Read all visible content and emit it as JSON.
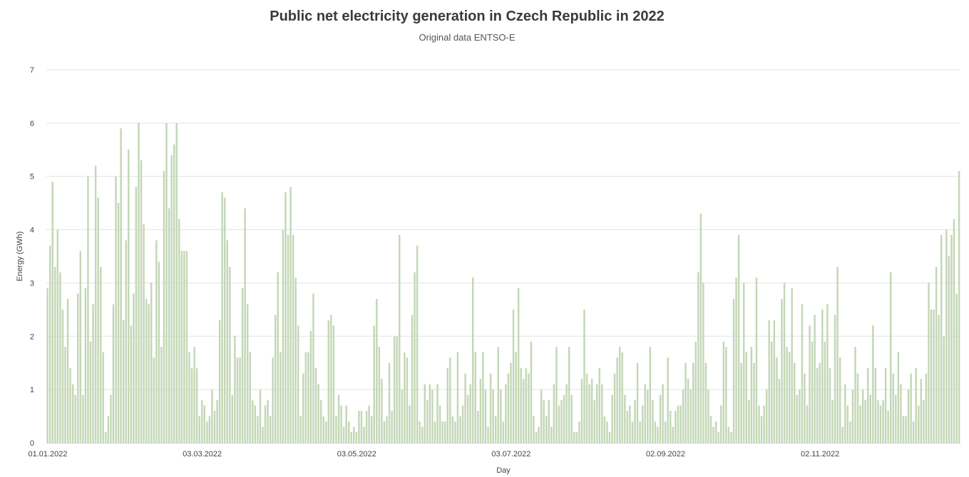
{
  "chart_data": {
    "type": "bar",
    "title": "Public net electricity generation in Czech Republic in 2022",
    "subtitle": "Original data ENTSO-E",
    "xlabel": "Day",
    "ylabel": "Energy (GWh)",
    "ylim": [
      0,
      7
    ],
    "y_ticks": [
      "0",
      "1",
      "2",
      "3",
      "4",
      "5",
      "6",
      "7"
    ],
    "grid": true,
    "color": "#c3d7b6",
    "x_ticks": [
      {
        "index": 0,
        "label": "01.01.2022"
      },
      {
        "index": 61,
        "label": "03.03.2022"
      },
      {
        "index": 122,
        "label": "03.05.2022"
      },
      {
        "index": 183,
        "label": "03.07.2022"
      },
      {
        "index": 244,
        "label": "02.09.2022"
      },
      {
        "index": 305,
        "label": "02.11.2022"
      }
    ],
    "values": [
      2.9,
      3.7,
      4.9,
      3.3,
      4.0,
      3.2,
      2.5,
      1.8,
      2.7,
      1.4,
      1.1,
      0.9,
      2.8,
      3.6,
      0.9,
      2.9,
      5.0,
      1.9,
      2.6,
      5.2,
      4.6,
      3.3,
      1.7,
      0.2,
      0.5,
      0.9,
      2.6,
      5.0,
      4.5,
      5.9,
      2.3,
      3.8,
      5.5,
      2.2,
      2.8,
      4.8,
      6.0,
      5.3,
      4.1,
      2.7,
      2.6,
      3.0,
      1.6,
      3.8,
      3.4,
      1.8,
      5.1,
      6.0,
      4.4,
      5.4,
      5.6,
      6.0,
      4.2,
      3.6,
      3.6,
      3.6,
      1.7,
      1.4,
      1.8,
      1.4,
      0.5,
      0.8,
      0.7,
      0.4,
      0.5,
      1.0,
      0.6,
      0.8,
      2.3,
      4.7,
      4.6,
      3.8,
      3.3,
      0.9,
      2.0,
      1.6,
      1.6,
      2.9,
      4.4,
      2.6,
      1.7,
      0.8,
      0.7,
      0.5,
      1.0,
      0.3,
      0.7,
      0.8,
      0.5,
      1.6,
      2.4,
      3.2,
      1.7,
      4.0,
      4.7,
      3.9,
      4.8,
      3.9,
      3.1,
      2.2,
      0.5,
      1.3,
      1.7,
      1.7,
      2.1,
      2.8,
      1.4,
      1.1,
      0.8,
      0.5,
      0.4,
      2.3,
      2.4,
      2.2,
      0.5,
      0.9,
      0.7,
      0.3,
      0.7,
      0.4,
      0.2,
      0.3,
      0.2,
      0.6,
      0.6,
      0.3,
      0.6,
      0.7,
      0.5,
      2.2,
      2.7,
      1.8,
      1.2,
      0.4,
      0.5,
      1.5,
      0.6,
      2.0,
      2.0,
      3.9,
      1.0,
      1.7,
      1.6,
      0.7,
      2.4,
      3.2,
      3.7,
      0.4,
      0.3,
      1.1,
      0.8,
      1.1,
      1.0,
      0.4,
      1.1,
      0.7,
      0.4,
      0.4,
      1.4,
      1.6,
      0.5,
      0.4,
      1.7,
      0.5,
      0.7,
      1.3,
      0.9,
      1.1,
      3.1,
      1.7,
      0.6,
      1.2,
      1.7,
      1.0,
      0.3,
      1.3,
      1.0,
      0.5,
      1.8,
      1.0,
      0.4,
      1.1,
      1.3,
      1.5,
      2.5,
      1.7,
      2.9,
      1.4,
      1.2,
      1.4,
      1.3,
      1.9,
      0.5,
      0.2,
      0.3,
      1.0,
      0.8,
      0.5,
      0.8,
      0.3,
      1.1,
      1.8,
      0.7,
      0.8,
      0.9,
      1.1,
      1.8,
      0.9,
      0.2,
      0.2,
      0.4,
      1.2,
      2.5,
      1.3,
      1.1,
      1.2,
      0.8,
      1.1,
      1.4,
      1.1,
      0.5,
      0.4,
      0.2,
      0.9,
      1.3,
      1.6,
      1.8,
      1.7,
      0.9,
      0.6,
      0.7,
      0.4,
      0.8,
      1.5,
      0.4,
      0.7,
      1.1,
      1.0,
      1.8,
      0.8,
      0.4,
      0.3,
      0.9,
      1.1,
      0.4,
      1.6,
      0.6,
      0.3,
      0.6,
      0.7,
      0.7,
      1.0,
      1.5,
      1.2,
      1.0,
      1.5,
      1.9,
      3.2,
      4.3,
      3.0,
      1.5,
      1.0,
      0.5,
      0.3,
      0.4,
      0.2,
      0.7,
      1.9,
      1.8,
      0.3,
      0.2,
      2.7,
      3.1,
      3.9,
      1.5,
      3.0,
      1.7,
      0.8,
      1.8,
      1.5,
      3.1,
      0.7,
      0.5,
      0.7,
      1.0,
      2.3,
      1.9,
      2.3,
      1.6,
      1.2,
      2.7,
      3.0,
      1.8,
      1.7,
      2.9,
      1.5,
      0.9,
      1.0,
      2.6,
      1.3,
      0.7,
      2.2,
      1.9,
      2.4,
      1.4,
      1.5,
      2.5,
      1.9,
      2.6,
      1.4,
      0.8,
      2.4,
      3.3,
      1.6,
      0.3,
      1.1,
      0.7,
      0.4,
      1.0,
      1.8,
      1.3,
      0.7,
      1.0,
      0.8,
      1.4,
      0.9,
      2.2,
      1.4,
      0.8,
      0.7,
      0.8,
      1.4,
      0.6,
      3.2,
      1.3,
      0.9,
      1.7,
      1.1,
      0.5,
      0.5,
      1.0,
      1.3,
      0.4,
      1.4,
      0.7,
      1.2,
      0.8,
      1.3,
      3.0,
      2.5,
      2.5,
      3.3,
      2.4,
      3.9,
      2.0,
      4.0,
      3.5,
      3.9,
      4.2,
      2.8,
      5.1
    ]
  }
}
